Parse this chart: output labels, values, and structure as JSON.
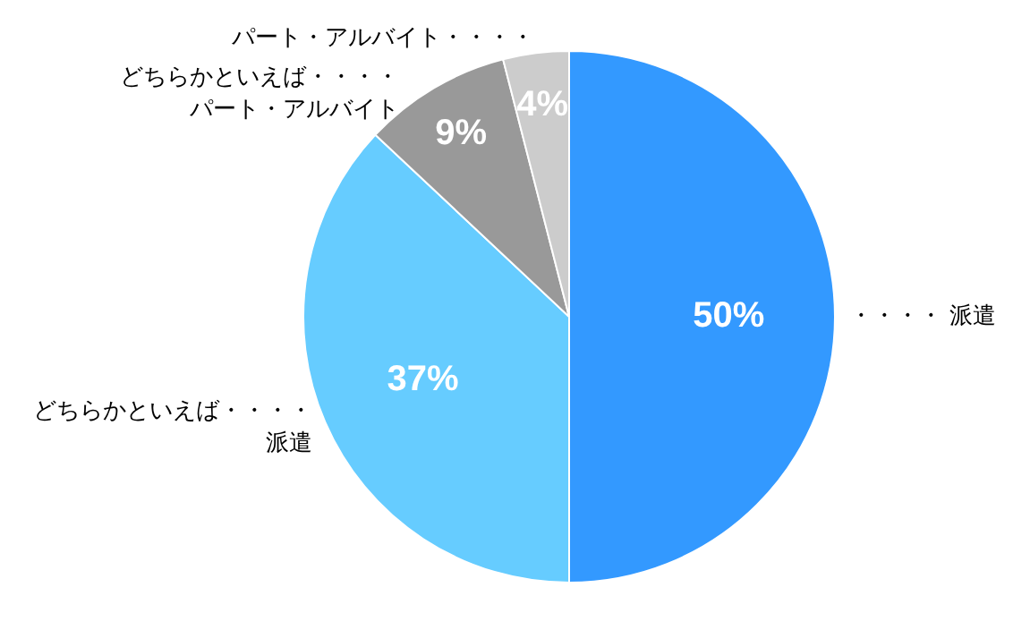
{
  "chart_data": {
    "type": "pie",
    "categories": [
      "・・・・ 派遣",
      "どちらかといえば・・・・派遣",
      "どちらかといえば・・・・パート・アルバイト",
      "パート・アルバイト・・・・"
    ],
    "values": [
      50,
      37,
      9,
      4
    ],
    "colors": [
      "#3399ff",
      "#66ccff",
      "#999999",
      "#cccccc"
    ],
    "value_labels": [
      "50%",
      "37%",
      "9%",
      "4%"
    ]
  }
}
